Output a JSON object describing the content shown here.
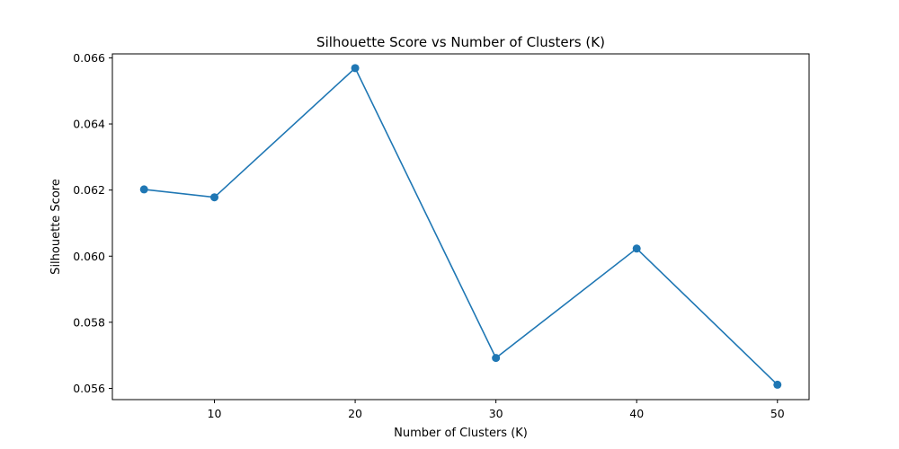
{
  "chart_data": {
    "type": "line",
    "title": "Silhouette Score vs Number of Clusters (K)",
    "xlabel": "Number of Clusters (K)",
    "ylabel": "Silhouette Score",
    "xlim": [
      2.75,
      52.25
    ],
    "ylim": [
      0.05566,
      0.06612
    ],
    "xticks": [
      10,
      20,
      30,
      40,
      50
    ],
    "yticks": [
      0.056,
      0.058,
      0.06,
      0.062,
      0.064,
      0.066
    ],
    "ytick_labels": [
      "0.056",
      "0.058",
      "0.060",
      "0.062",
      "0.064",
      "0.066"
    ],
    "grid": false,
    "legend": "none",
    "series": [
      {
        "name": "Silhouette Score",
        "color": "#1f77b4",
        "marker": "circle",
        "x": [
          5,
          10,
          20,
          30,
          40,
          50
        ],
        "y": [
          0.06202,
          0.06178,
          0.06569,
          0.05692,
          0.06023,
          0.05611
        ]
      }
    ]
  }
}
